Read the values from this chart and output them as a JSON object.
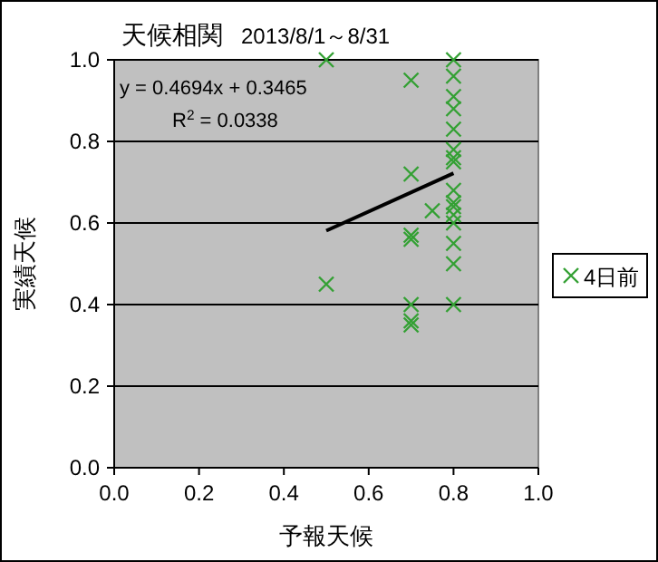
{
  "chart_data": {
    "type": "scatter",
    "title": "天候相関",
    "subtitle": "2013/8/1～8/31",
    "xlabel": "予報天候",
    "ylabel": "実績天候",
    "xlim": [
      0,
      1
    ],
    "ylim": [
      0,
      1
    ],
    "xticks": [
      {
        "value": 0,
        "label": "0.0"
      },
      {
        "value": 0.2,
        "label": "0.2"
      },
      {
        "value": 0.4,
        "label": "0.4"
      },
      {
        "value": 0.6,
        "label": "0.6"
      },
      {
        "value": 0.8,
        "label": "0.8"
      },
      {
        "value": 1,
        "label": "1.0"
      }
    ],
    "yticks": [
      {
        "value": 0,
        "label": "0.0"
      },
      {
        "value": 0.2,
        "label": "0.2"
      },
      {
        "value": 0.4,
        "label": "0.4"
      },
      {
        "value": 0.6,
        "label": "0.6"
      },
      {
        "value": 0.8,
        "label": "0.8"
      },
      {
        "value": 1,
        "label": "1.0"
      }
    ],
    "grid": "y",
    "legend": "right",
    "marker": "cross",
    "annotations": [
      "y = 0.4694x + 0.3465",
      "R$^{2}$ = 0.0338"
    ],
    "series": [
      {
        "name": "4日前",
        "color": "#33a033",
        "x": [
          0.5,
          0.5,
          0.7,
          0.7,
          0.7,
          0.7,
          0.7,
          0.7,
          0.7,
          0.75,
          0.8,
          0.8,
          0.8,
          0.8,
          0.8,
          0.8,
          0.8,
          0.8,
          0.8,
          0.8,
          0.8,
          0.8,
          0.8,
          0.8,
          0.8,
          0.8
        ],
        "values": [
          1.0,
          0.45,
          0.95,
          0.72,
          0.57,
          0.56,
          0.4,
          0.36,
          0.35,
          0.63,
          1.0,
          0.96,
          0.91,
          0.88,
          0.83,
          0.78,
          0.76,
          0.75,
          0.68,
          0.65,
          0.64,
          0.62,
          0.6,
          0.55,
          0.5,
          0.4
        ]
      },
      {
        "type": "line",
        "color": "#000000",
        "line_style": "solid",
        "marker": "none",
        "x": [
          0.5,
          0.8
        ],
        "values": [
          0.5812,
          0.722
        ]
      }
    ]
  }
}
